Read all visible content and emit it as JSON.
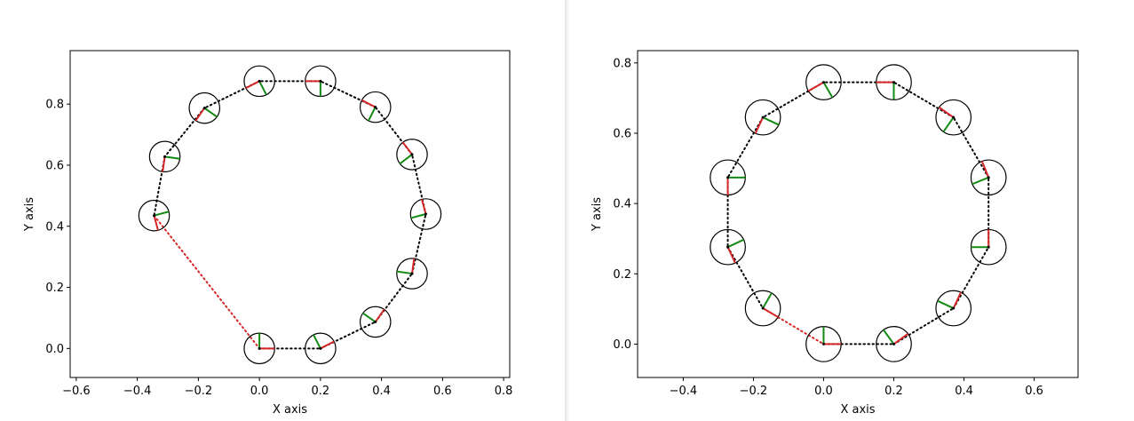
{
  "colors": {
    "path": "#000000",
    "closing_segment": "#d62728",
    "heading_x": "#d62728",
    "heading_y": "#138a13",
    "robot_outline": "#000000"
  },
  "chart_data": [
    {
      "type": "line",
      "xlabel": "X axis",
      "ylabel": "Y axis",
      "xlim": [
        -0.62,
        0.82
      ],
      "ylim": [
        -0.095,
        0.975
      ],
      "xticks": [
        "−0.6",
        "−0.4",
        "−0.2",
        "0.0",
        "0.2",
        "0.4",
        "0.6",
        "0.8"
      ],
      "xtick_values": [
        -0.6,
        -0.4,
        -0.2,
        0.0,
        0.2,
        0.4,
        0.6,
        0.8
      ],
      "yticks": [
        "0.0",
        "0.2",
        "0.4",
        "0.6",
        "0.8"
      ],
      "ytick_values": [
        0.0,
        0.2,
        0.4,
        0.6,
        0.8
      ],
      "grid": false,
      "robot_radius": 0.05,
      "heading_length": 0.05,
      "poses": [
        {
          "x": 0.0,
          "y": 0.0,
          "theta": 0
        },
        {
          "x": 0.2,
          "y": 0.0,
          "theta": 27
        },
        {
          "x": 0.38,
          "y": 0.087,
          "theta": 55
        },
        {
          "x": 0.5,
          "y": 0.245,
          "theta": 82
        },
        {
          "x": 0.545,
          "y": 0.44,
          "theta": 105
        },
        {
          "x": 0.5,
          "y": 0.635,
          "theta": 127
        },
        {
          "x": 0.38,
          "y": 0.79,
          "theta": 153
        },
        {
          "x": 0.2,
          "y": 0.875,
          "theta": 180
        },
        {
          "x": 0.0,
          "y": 0.875,
          "theta": 207
        },
        {
          "x": -0.18,
          "y": 0.787,
          "theta": 235
        },
        {
          "x": -0.31,
          "y": 0.628,
          "theta": 262
        },
        {
          "x": -0.345,
          "y": 0.435,
          "theta": 285
        }
      ],
      "closed_path_red_segment": true
    },
    {
      "type": "line",
      "xlabel": "X axis",
      "ylabel": "Y axis",
      "xlim": [
        -0.53,
        0.725
      ],
      "ylim": [
        -0.095,
        0.835
      ],
      "xticks": [
        "−0.4",
        "−0.2",
        "0.0",
        "0.2",
        "0.4",
        "0.6"
      ],
      "xtick_values": [
        -0.4,
        -0.2,
        0.0,
        0.2,
        0.4,
        0.6
      ],
      "yticks": [
        "0.0",
        "0.2",
        "0.4",
        "0.6",
        "0.8"
      ],
      "ytick_values": [
        0.0,
        0.2,
        0.4,
        0.6,
        0.8
      ],
      "grid": false,
      "robot_radius": 0.05,
      "heading_length": 0.05,
      "poses": [
        {
          "x": 0.0,
          "y": 0.0,
          "theta": 0
        },
        {
          "x": 0.2,
          "y": 0.0,
          "theta": 36
        },
        {
          "x": 0.37,
          "y": 0.102,
          "theta": 65
        },
        {
          "x": 0.47,
          "y": 0.276,
          "theta": 90
        },
        {
          "x": 0.47,
          "y": 0.474,
          "theta": 112
        },
        {
          "x": 0.37,
          "y": 0.645,
          "theta": 145
        },
        {
          "x": 0.2,
          "y": 0.745,
          "theta": 180
        },
        {
          "x": 0.0,
          "y": 0.745,
          "theta": 210
        },
        {
          "x": -0.173,
          "y": 0.645,
          "theta": 245
        },
        {
          "x": -0.273,
          "y": 0.474,
          "theta": 270
        },
        {
          "x": -0.273,
          "y": 0.276,
          "theta": 295
        },
        {
          "x": -0.173,
          "y": 0.102,
          "theta": 330
        }
      ],
      "closed_path_red_segment": true
    }
  ]
}
